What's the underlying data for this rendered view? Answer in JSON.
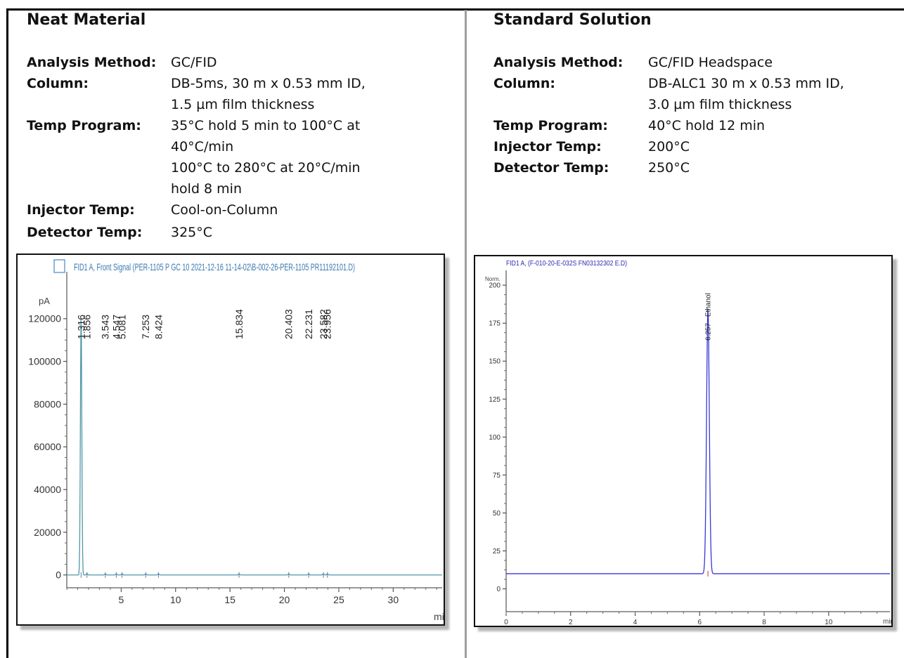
{
  "neat": {
    "title": "Neat Material",
    "rows": [
      {
        "label": "Analysis Method:",
        "lines": [
          "GC/FID"
        ]
      },
      {
        "label": "Column:",
        "lines": [
          "DB-5ms, 30 m x 0.53 mm ID,",
          "1.5 µm film thickness"
        ]
      },
      {
        "label": "Temp Program:",
        "lines": [
          "35°C hold 5 min to 100°C at",
          "40°C/min",
          "100°C to 280°C at 20°C/min",
          "hold 8 min"
        ]
      },
      {
        "label": "Injector Temp:",
        "lines": [
          "Cool-on-Column"
        ]
      },
      {
        "label": "Detector Temp:",
        "lines": [
          "325°C"
        ]
      }
    ]
  },
  "standard": {
    "title": "Standard Solution",
    "rows": [
      {
        "label": "Analysis Method:",
        "lines": [
          "GC/FID Headspace"
        ]
      },
      {
        "label": "Column:",
        "lines": [
          "DB-ALC1 30 m x 0.53 mm ID,",
          "3.0 µm film thickness"
        ]
      },
      {
        "label": "Temp Program:",
        "lines": [
          "40°C hold 12 min"
        ]
      },
      {
        "label": "Injector Temp:",
        "lines": [
          "200°C"
        ]
      },
      {
        "label": "Detector Temp:",
        "lines": [
          "250°C"
        ]
      }
    ]
  },
  "chart_data": [
    {
      "type": "line",
      "title": "FID1 A, Front Signal (PER-1105 P GC 10 2021-12-16 11-14-02\\B-002-26-PER-1105 PR11192101.D)",
      "ylabel": "pA",
      "xlabel": "min",
      "xlim": [
        0,
        34.5
      ],
      "ylim": [
        -6000,
        140000
      ],
      "x_ticks": [
        5,
        10,
        15,
        20,
        25,
        30
      ],
      "y_ticks": [
        0,
        20000,
        40000,
        60000,
        80000,
        100000,
        120000
      ],
      "baseline": 0,
      "peaks": [
        {
          "rt": 1.316,
          "label": "1.316",
          "height": 122000
        },
        {
          "rt": 1.856,
          "label": "1.856",
          "height": 600
        },
        {
          "rt": 3.543,
          "label": "3.543",
          "height": 500
        },
        {
          "rt": 4.547,
          "label": "4.547",
          "height": 500
        },
        {
          "rt": 5.081,
          "label": "5.081",
          "height": 500
        },
        {
          "rt": 7.253,
          "label": "7.253",
          "height": 500
        },
        {
          "rt": 8.424,
          "label": "8.424",
          "height": 500
        },
        {
          "rt": 15.834,
          "label": "15.834",
          "height": 500
        },
        {
          "rt": 20.403,
          "label": "20.403",
          "height": 500
        },
        {
          "rt": 22.231,
          "label": "22.231",
          "height": 500
        },
        {
          "rt": 23.582,
          "label": "23.582",
          "height": 500
        },
        {
          "rt": 23.956,
          "label": "23.956",
          "height": 500
        }
      ],
      "line_color": "#4f97a6"
    },
    {
      "type": "line",
      "title": "FID1 A, (F-010-20-E-032S FN03132302 E.D)",
      "ylabel": "Norm.",
      "xlabel": "min",
      "xlim": [
        0,
        11.9
      ],
      "ylim": [
        -15,
        207
      ],
      "x_ticks": [
        0,
        2,
        4,
        6,
        8,
        10
      ],
      "y_ticks": [
        0,
        25,
        50,
        75,
        100,
        125,
        150,
        175,
        200
      ],
      "baseline": 10,
      "peaks": [
        {
          "rt": 6.257,
          "label": "6.257 - Ethanol",
          "height": 175
        }
      ],
      "line_color": "#3838d8"
    }
  ]
}
